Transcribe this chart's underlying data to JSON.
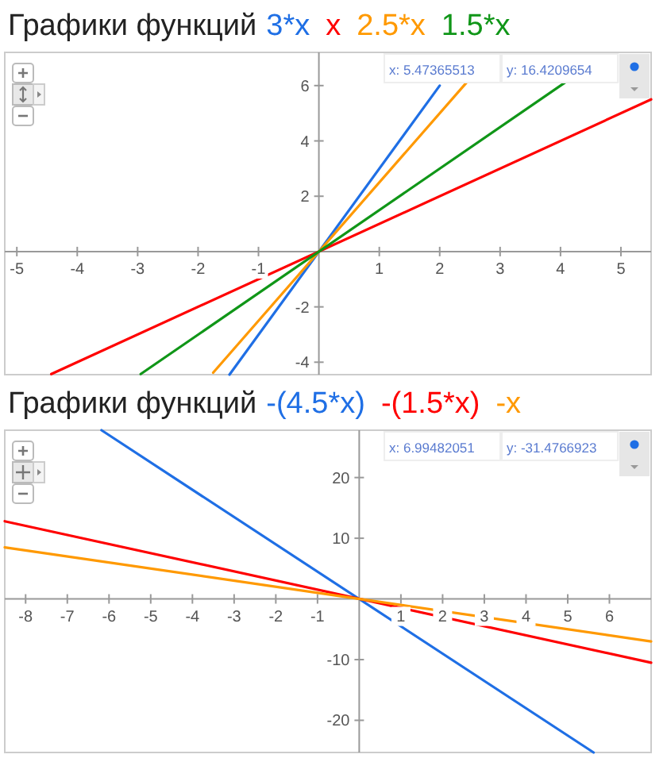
{
  "chart_data": [
    {
      "type": "line",
      "title": "Графики функций",
      "legend": "top",
      "grid": false,
      "xlim": [
        -5.2,
        5.5
      ],
      "ylim": [
        -4.45,
        7.2
      ],
      "xticks": [
        -5,
        -4,
        -3,
        -2,
        -1,
        1,
        2,
        3,
        4,
        5
      ],
      "yticks": [
        -4,
        -2,
        2,
        4,
        6
      ],
      "annotations": [
        "x: 5.47365513",
        "y: 16.4209654"
      ],
      "series": [
        {
          "name": "3*x",
          "color": "#1f6fe5",
          "x": [
            -1.48,
            2
          ],
          "values": [
            -4.45,
            6
          ]
        },
        {
          "name": "x",
          "color": "#ff0000",
          "x": [
            -4.43,
            5.5
          ],
          "values": [
            -4.43,
            5.5
          ]
        },
        {
          "name": "2.5*x",
          "color": "#ff9900",
          "x": [
            -1.75,
            2.46
          ],
          "values": [
            -4.38,
            6.15
          ]
        },
        {
          "name": "1.5*x",
          "color": "#109618",
          "x": [
            -2.95,
            4.1
          ],
          "values": [
            -4.43,
            6.15
          ]
        }
      ]
    },
    {
      "type": "line",
      "title": "Графики функций",
      "legend": "top",
      "grid": false,
      "xlim": [
        -8.5,
        7
      ],
      "ylim": [
        -25.3,
        27.8
      ],
      "xticks": [
        -8,
        -7,
        -6,
        -5,
        -4,
        -3,
        -2,
        -1,
        1,
        2,
        3,
        4,
        5,
        6
      ],
      "yticks": [
        -20,
        -10,
        10,
        20
      ],
      "annotations": [
        "x: 6.99482051",
        "y: -31.4766923"
      ],
      "series": [
        {
          "name": "-(4.5*x)",
          "color": "#1f6fe5",
          "x": [
            -6.18,
            5.62
          ],
          "values": [
            27.8,
            -25.3
          ]
        },
        {
          "name": "-(1.5*x)",
          "color": "#ff0000",
          "x": [
            -8.5,
            7
          ],
          "values": [
            12.8,
            -10.5
          ]
        },
        {
          "name": "-x",
          "color": "#ff9900",
          "x": [
            -8.5,
            7
          ],
          "values": [
            8.5,
            -7
          ]
        }
      ]
    }
  ]
}
